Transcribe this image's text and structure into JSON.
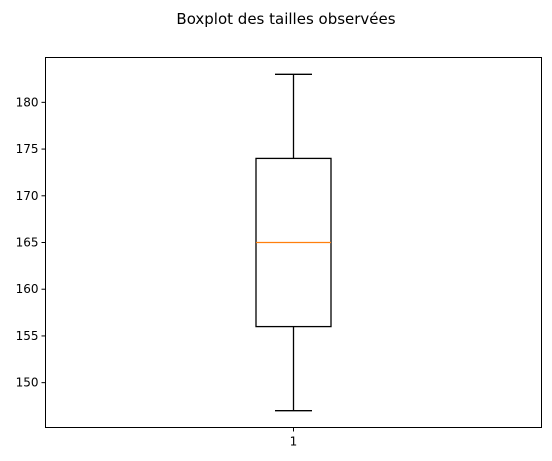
{
  "chart_data": {
    "type": "boxplot",
    "title": "Boxplot des tailles observées",
    "xlabel": "",
    "ylabel": "",
    "categories": [
      "1"
    ],
    "boxes": [
      {
        "category": "1",
        "whisker_low": 147,
        "q1": 156,
        "median": 165,
        "q3": 174,
        "whisker_high": 183
      }
    ],
    "ylim": [
      145.2,
      184.8
    ],
    "yticks": [
      150,
      155,
      160,
      165,
      170,
      175,
      180
    ],
    "grid": false,
    "colors": {
      "box": "#000000",
      "median": "#ff7f0e",
      "axes": "#000000"
    }
  }
}
